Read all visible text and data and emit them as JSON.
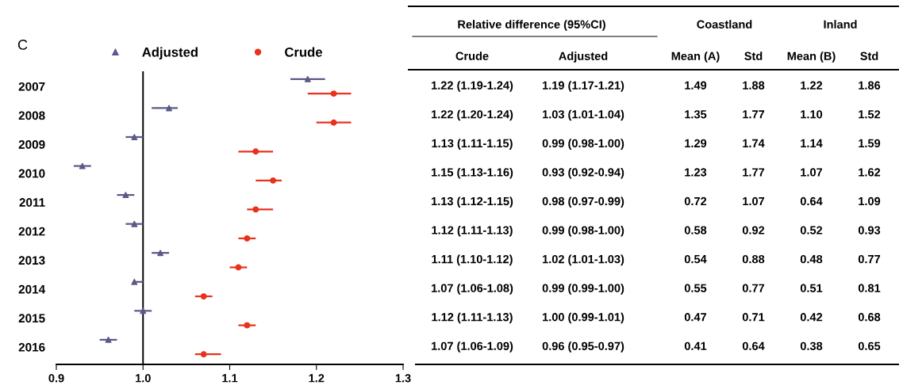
{
  "chart_data": [
    {
      "type": "scatter",
      "title": "C",
      "annotations": [
        "Relative difference (95%CI)"
      ],
      "categories": [
        "2007",
        "2008",
        "2009",
        "2010",
        "2011",
        "2012",
        "2013",
        "2014",
        "2015",
        "2016"
      ],
      "series": [
        {
          "name": "Adjusted",
          "color": "#5b5a8a",
          "marker": "triangle",
          "values": [
            1.19,
            1.03,
            0.99,
            0.93,
            0.98,
            0.99,
            1.02,
            0.99,
            1.0,
            0.96
          ],
          "errors": [
            [
              1.17,
              1.21
            ],
            [
              1.01,
              1.04
            ],
            [
              0.98,
              1.0
            ],
            [
              0.92,
              0.94
            ],
            [
              0.97,
              0.99
            ],
            [
              0.98,
              1.0
            ],
            [
              1.01,
              1.03
            ],
            [
              0.99,
              1.0
            ],
            [
              0.99,
              1.01
            ],
            [
              0.95,
              0.97
            ]
          ],
          "value_labels": [
            "1.19 (1.17-1.21)",
            "1.03 (1.01-1.04)",
            "0.99 (0.98-1.00)",
            "0.93 (0.92-0.94)",
            "0.98 (0.97-0.99)",
            "0.99 (0.98-1.00)",
            "1.02 (1.01-1.03)",
            "0.99 (0.99-1.00)",
            "1.00 (0.99-1.01)",
            "0.96 (0.95-0.97)"
          ]
        },
        {
          "name": "Crude",
          "color": "#e8321e",
          "marker": "circle",
          "values": [
            1.22,
            1.22,
            1.13,
            1.15,
            1.13,
            1.12,
            1.11,
            1.07,
            1.12,
            1.07
          ],
          "errors": [
            [
              1.19,
              1.24
            ],
            [
              1.2,
              1.24
            ],
            [
              1.11,
              1.15
            ],
            [
              1.13,
              1.16
            ],
            [
              1.12,
              1.15
            ],
            [
              1.11,
              1.13
            ],
            [
              1.1,
              1.12
            ],
            [
              1.06,
              1.08
            ],
            [
              1.11,
              1.13
            ],
            [
              1.06,
              1.09
            ]
          ],
          "value_labels": [
            "1.22 (1.19-1.24)",
            "1.22 (1.20-1.24)",
            "1.13 (1.11-1.15)",
            "1.15 (1.13-1.16)",
            "1.13 (1.12-1.15)",
            "1.12 (1.11-1.13)",
            "1.11 (1.10-1.12)",
            "1.07 (1.06-1.08)",
            "1.12 (1.11-1.13)",
            "1.07 (1.06-1.09)"
          ]
        }
      ],
      "orientation": "horizontal",
      "xlim": [
        0.9,
        1.3
      ],
      "xticks": [
        {
          "value": 0.9,
          "label": "0.9"
        },
        {
          "value": 1.0,
          "label": "1.0"
        },
        {
          "value": 1.1,
          "label": "1.1"
        },
        {
          "value": 1.2,
          "label": "1.2"
        },
        {
          "value": 1.3,
          "label": "1.3"
        }
      ],
      "ref_lines": [
        {
          "axis": "x",
          "value": 1.0,
          "color": "#000000"
        }
      ],
      "legend": "top",
      "grid": false
    },
    {
      "type": "other",
      "annotations": [
        "Coastland",
        "Inland"
      ],
      "categories": [
        "Mean (A)",
        "Std",
        "Mean (B)",
        "Std"
      ],
      "cell_labels": [
        [
          "1.49",
          "1.88",
          "1.22",
          "1.86"
        ],
        [
          "1.35",
          "1.77",
          "1.10",
          "1.52"
        ],
        [
          "1.29",
          "1.74",
          "1.14",
          "1.59"
        ],
        [
          "1.23",
          "1.77",
          "1.07",
          "1.62"
        ],
        [
          "0.72",
          "1.07",
          "0.64",
          "1.09"
        ],
        [
          "0.58",
          "0.92",
          "0.52",
          "0.93"
        ],
        [
          "0.54",
          "0.88",
          "0.48",
          "0.77"
        ],
        [
          "0.55",
          "0.77",
          "0.51",
          "0.81"
        ],
        [
          "0.47",
          "0.71",
          "0.42",
          "0.68"
        ],
        [
          "0.41",
          "0.64",
          "0.38",
          "0.65"
        ]
      ]
    }
  ]
}
